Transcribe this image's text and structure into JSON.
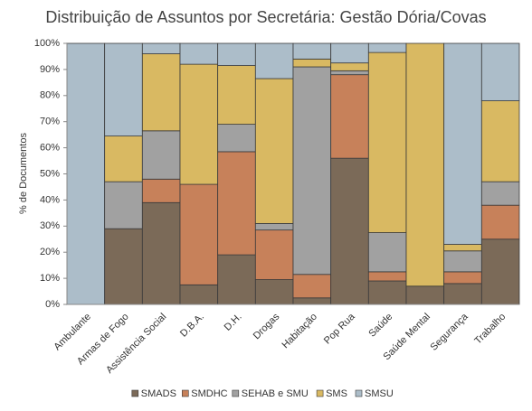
{
  "chart_data": {
    "type": "stacked-bar-100",
    "title": "Distribuição de Assuntos por Secretária: Gestão Dória/Covas",
    "y_label": "% de Documentos",
    "categories": [
      "Ambulante",
      "Armas de Fogo",
      "Assistência Social",
      "D.B.A.",
      "D.H.",
      "Drogas",
      "Habitação",
      "Pop Rua",
      "Saúde",
      "Saúde Mental",
      "Segurança",
      "Trabalho"
    ],
    "series": [
      {
        "name": "SMADS",
        "color": "#7b6a58",
        "values": [
          0,
          29,
          39,
          7.5,
          19,
          9.5,
          2.5,
          56,
          9,
          7,
          8,
          25
        ]
      },
      {
        "name": "SMDHC",
        "color": "#c7815a",
        "values": [
          0,
          0,
          9,
          38.5,
          39.5,
          19,
          9,
          32,
          3.5,
          0,
          4.5,
          13
        ]
      },
      {
        "name": "SEHAB e SMU",
        "color": "#a1a1a1",
        "values": [
          0,
          18,
          18.5,
          0,
          10.5,
          2.5,
          79.5,
          1.5,
          15,
          0,
          8,
          9
        ]
      },
      {
        "name": "SMS",
        "color": "#d9b962",
        "values": [
          0,
          17.5,
          29.5,
          46,
          22.5,
          55.5,
          3,
          3,
          69,
          93,
          2.5,
          31
        ]
      },
      {
        "name": "SMSU",
        "color": "#acbdc9",
        "values": [
          100,
          35.5,
          4,
          8,
          8.5,
          13.5,
          6,
          7.5,
          3.5,
          0,
          77,
          22
        ]
      }
    ],
    "ylim": [
      0,
      100
    ],
    "yticks": [
      {
        "value": 0,
        "label": "0%"
      },
      {
        "value": 10,
        "label": "10%"
      },
      {
        "value": 20,
        "label": "20%"
      },
      {
        "value": 30,
        "label": "30%"
      },
      {
        "value": 40,
        "label": "40%"
      },
      {
        "value": 50,
        "label": "50%"
      },
      {
        "value": 60,
        "label": "60%"
      },
      {
        "value": 70,
        "label": "70%"
      },
      {
        "value": 80,
        "label": "80%"
      },
      {
        "value": 90,
        "label": "90%"
      },
      {
        "value": 100,
        "label": "100%"
      }
    ],
    "legend": "bottom"
  }
}
